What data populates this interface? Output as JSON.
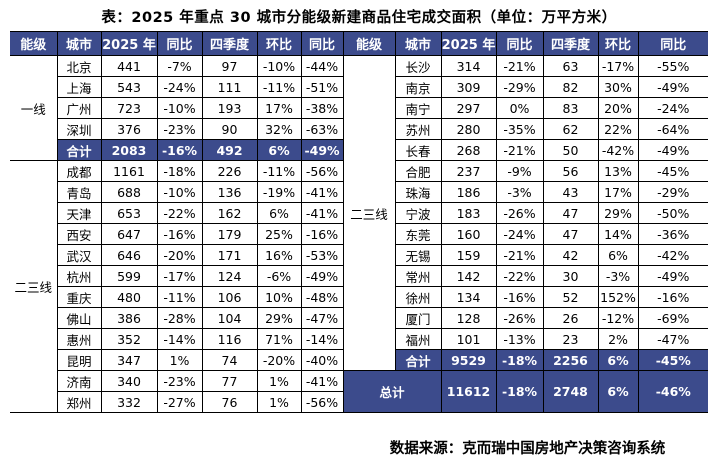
{
  "colors": {
    "header_bg": "#3c4b8c",
    "total_row_bg": "#3c4b8c",
    "total_row_text": "#ffffff",
    "border": "#000000",
    "body_text": "#000000"
  },
  "chart_data": {
    "type": "table",
    "title": "表：2025 年重点 30 城市分能级新建商品住宅成交面积（单位：万平方米）",
    "source": "数据来源：克而瑞中国房地产决策咨询系统",
    "unit_label": "万平方米",
    "columns": [
      "能级",
      "城市",
      "2025 年",
      "同比",
      "四季度",
      "环比",
      "同比"
    ],
    "left": {
      "groups": [
        {
          "tier": "一线",
          "rows": [
            [
              "北京",
              "441",
              "-7%",
              "97",
              "-10%",
              "-44%"
            ],
            [
              "上海",
              "543",
              "-24%",
              "111",
              "-11%",
              "-51%"
            ],
            [
              "广州",
              "723",
              "-10%",
              "193",
              "17%",
              "-38%"
            ],
            [
              "深圳",
              "376",
              "-23%",
              "90",
              "32%",
              "-63%"
            ]
          ],
          "total": [
            "合计",
            "2083",
            "-16%",
            "492",
            "6%",
            "-49%"
          ]
        },
        {
          "tier": "二三线",
          "rows": [
            [
              "成都",
              "1161",
              "-18%",
              "226",
              "-11%",
              "-56%"
            ],
            [
              "青岛",
              "688",
              "-10%",
              "136",
              "-19%",
              "-41%"
            ],
            [
              "天津",
              "653",
              "-22%",
              "162",
              "6%",
              "-41%"
            ],
            [
              "西安",
              "647",
              "-16%",
              "179",
              "25%",
              "-16%"
            ],
            [
              "武汉",
              "646",
              "-20%",
              "171",
              "16%",
              "-53%"
            ],
            [
              "杭州",
              "599",
              "-17%",
              "124",
              "-6%",
              "-49%"
            ],
            [
              "重庆",
              "480",
              "-11%",
              "106",
              "10%",
              "-48%"
            ],
            [
              "佛山",
              "386",
              "-28%",
              "104",
              "29%",
              "-47%"
            ],
            [
              "惠州",
              "352",
              "-14%",
              "116",
              "71%",
              "-14%"
            ],
            [
              "昆明",
              "347",
              "1%",
              "74",
              "-20%",
              "-40%"
            ],
            [
              "济南",
              "340",
              "-23%",
              "77",
              "1%",
              "-41%"
            ],
            [
              "郑州",
              "332",
              "-27%",
              "76",
              "1%",
              "-56%"
            ]
          ],
          "total": null
        }
      ]
    },
    "right": {
      "groups": [
        {
          "tier": "二三线",
          "rows": [
            [
              "长沙",
              "314",
              "-21%",
              "63",
              "-17%",
              "-55%"
            ],
            [
              "南京",
              "309",
              "-29%",
              "82",
              "30%",
              "-49%"
            ],
            [
              "南宁",
              "297",
              "0%",
              "83",
              "20%",
              "-24%"
            ],
            [
              "苏州",
              "280",
              "-35%",
              "62",
              "22%",
              "-64%"
            ],
            [
              "长春",
              "268",
              "-21%",
              "50",
              "-42%",
              "-49%"
            ],
            [
              "合肥",
              "237",
              "-9%",
              "56",
              "13%",
              "-45%"
            ],
            [
              "珠海",
              "186",
              "-3%",
              "43",
              "17%",
              "-29%"
            ],
            [
              "宁波",
              "183",
              "-26%",
              "47",
              "29%",
              "-50%"
            ],
            [
              "东莞",
              "160",
              "-24%",
              "47",
              "14%",
              "-36%"
            ],
            [
              "无锡",
              "159",
              "-21%",
              "42",
              "6%",
              "-42%"
            ],
            [
              "常州",
              "142",
              "-22%",
              "30",
              "-3%",
              "-49%"
            ],
            [
              "徐州",
              "134",
              "-16%",
              "52",
              "152%",
              "-16%"
            ],
            [
              "厦门",
              "128",
              "-26%",
              "26",
              "-12%",
              "-69%"
            ],
            [
              "福州",
              "101",
              "-13%",
              "23",
              "2%",
              "-47%"
            ]
          ],
          "total": [
            "合计",
            "9529",
            "-18%",
            "2256",
            "6%",
            "-45%"
          ]
        }
      ],
      "grand_total": [
        "总计",
        "11612",
        "-18%",
        "2748",
        "6%",
        "-46%"
      ]
    }
  }
}
